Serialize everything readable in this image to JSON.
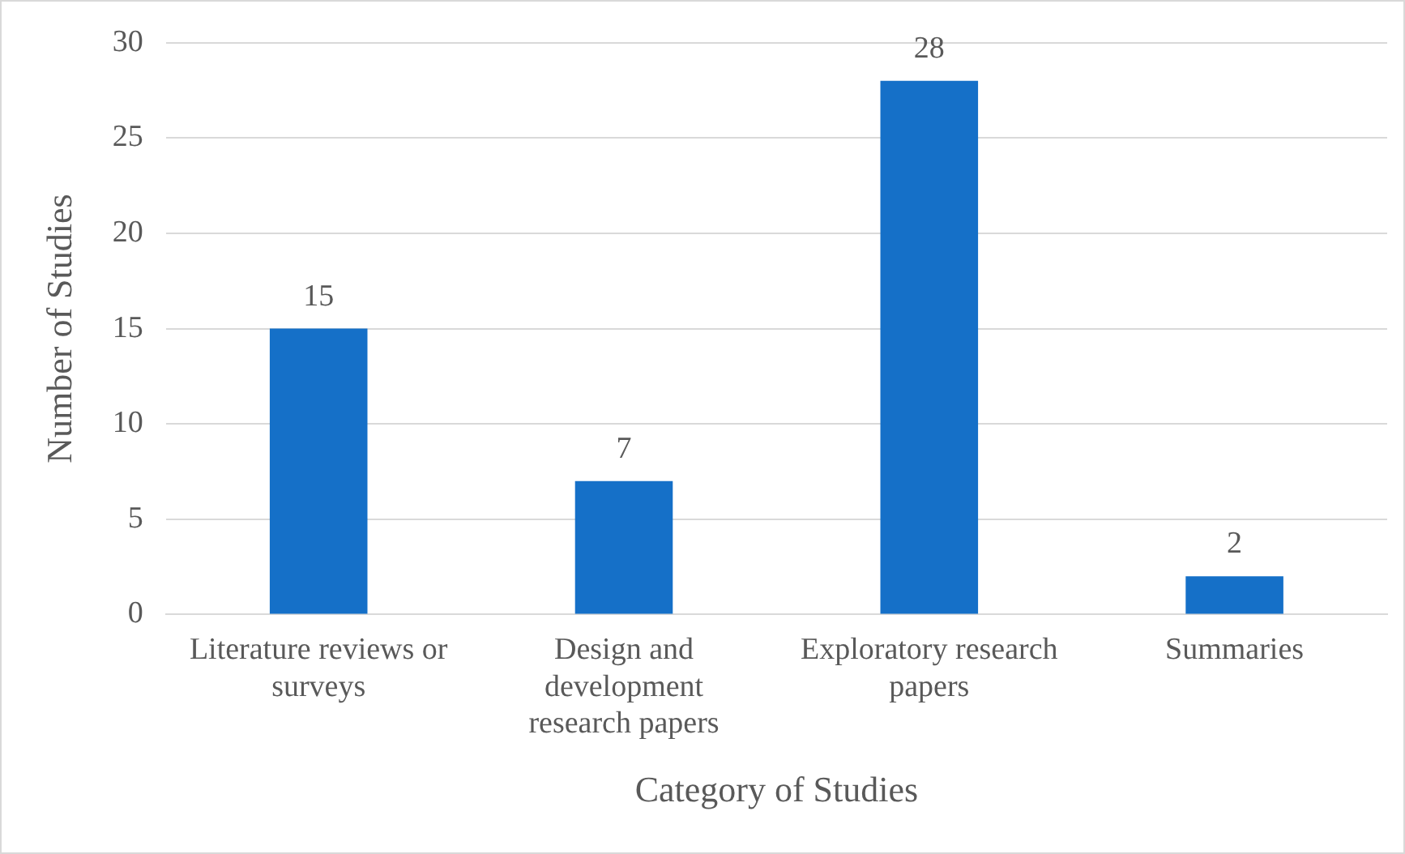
{
  "chart_data": {
    "type": "bar",
    "xlabel": "Category of Studies",
    "ylabel": "Number of Studies",
    "categories": [
      "Literature reviews or surveys",
      "Design and development research papers",
      "Exploratory research papers",
      "Summaries"
    ],
    "values": [
      15,
      7,
      28,
      2
    ],
    "color": "#1570c8",
    "ylim": [
      0,
      30
    ],
    "yticks": [
      0,
      5,
      10,
      15,
      20,
      25,
      30
    ],
    "grid": "y",
    "data_labels": true
  }
}
